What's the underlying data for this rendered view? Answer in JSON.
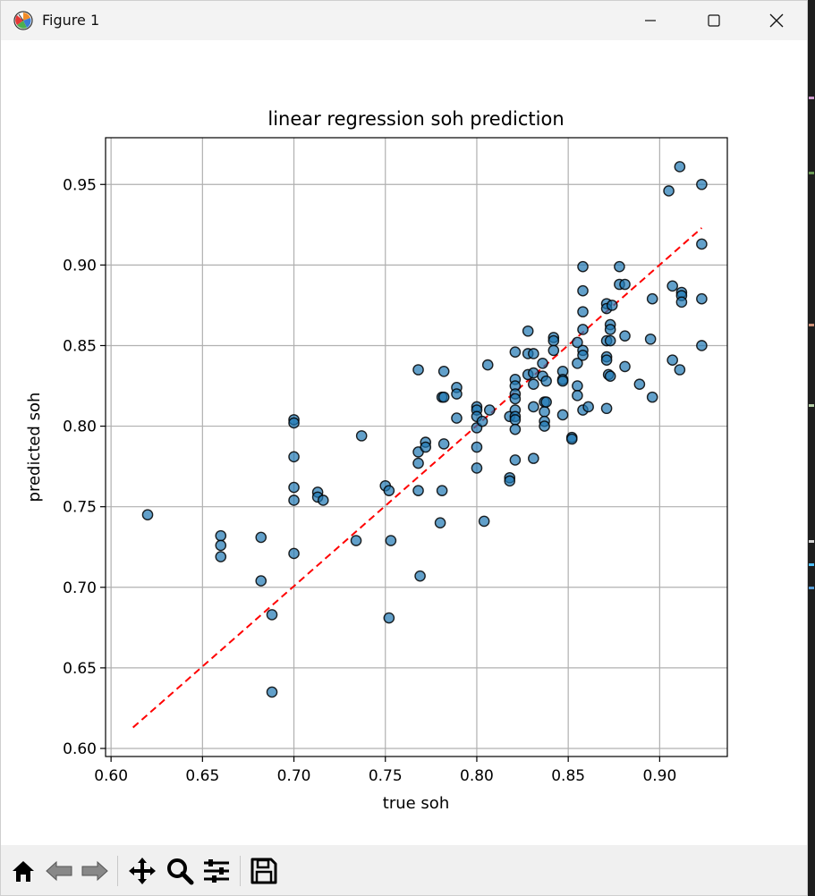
{
  "window": {
    "title": "Figure 1",
    "app_icon": "matplotlib-icon",
    "controls": [
      "minimize-icon",
      "maximize-icon",
      "close-icon"
    ]
  },
  "toolbar": {
    "buttons": [
      "home-icon",
      "back-icon",
      "forward-icon",
      "pan-icon",
      "zoom-icon",
      "configure-subplots-icon",
      "save-icon"
    ]
  },
  "chart_data": {
    "type": "scatter",
    "title": "linear regression soh prediction",
    "xlabel": "true soh",
    "ylabel": "predicted soh",
    "xlim": [
      0.597,
      0.937
    ],
    "ylim": [
      0.595,
      0.979
    ],
    "xticks": [
      "0.60",
      "0.65",
      "0.70",
      "0.75",
      "0.80",
      "0.85",
      "0.90"
    ],
    "yticks": [
      "0.60",
      "0.65",
      "0.70",
      "0.75",
      "0.80",
      "0.85",
      "0.90",
      "0.95"
    ],
    "grid": true,
    "point_color": "#1f77b4",
    "point_alpha": 0.7,
    "point_edge_color": "#000000",
    "fit_line": {
      "style": "dashed",
      "color": "#ff0000",
      "x": [
        0.612,
        0.923
      ],
      "y": [
        0.613,
        0.923
      ]
    },
    "points": [
      [
        0.62,
        0.745
      ],
      [
        0.66,
        0.732
      ],
      [
        0.66,
        0.726
      ],
      [
        0.66,
        0.719
      ],
      [
        0.682,
        0.731
      ],
      [
        0.682,
        0.704
      ],
      [
        0.688,
        0.683
      ],
      [
        0.688,
        0.635
      ],
      [
        0.7,
        0.804
      ],
      [
        0.7,
        0.802
      ],
      [
        0.7,
        0.781
      ],
      [
        0.7,
        0.762
      ],
      [
        0.7,
        0.754
      ],
      [
        0.7,
        0.721
      ],
      [
        0.713,
        0.759
      ],
      [
        0.713,
        0.756
      ],
      [
        0.716,
        0.754
      ],
      [
        0.734,
        0.729
      ],
      [
        0.737,
        0.794
      ],
      [
        0.75,
        0.763
      ],
      [
        0.752,
        0.76
      ],
      [
        0.752,
        0.681
      ],
      [
        0.753,
        0.729
      ],
      [
        0.768,
        0.835
      ],
      [
        0.768,
        0.784
      ],
      [
        0.768,
        0.777
      ],
      [
        0.768,
        0.76
      ],
      [
        0.769,
        0.707
      ],
      [
        0.772,
        0.79
      ],
      [
        0.772,
        0.787
      ],
      [
        0.78,
        0.74
      ],
      [
        0.781,
        0.818
      ],
      [
        0.781,
        0.76
      ],
      [
        0.782,
        0.834
      ],
      [
        0.782,
        0.818
      ],
      [
        0.782,
        0.789
      ],
      [
        0.789,
        0.824
      ],
      [
        0.789,
        0.82
      ],
      [
        0.789,
        0.805
      ],
      [
        0.8,
        0.812
      ],
      [
        0.8,
        0.81
      ],
      [
        0.8,
        0.806
      ],
      [
        0.8,
        0.799
      ],
      [
        0.8,
        0.787
      ],
      [
        0.8,
        0.774
      ],
      [
        0.803,
        0.803
      ],
      [
        0.804,
        0.741
      ],
      [
        0.806,
        0.838
      ],
      [
        0.807,
        0.81
      ],
      [
        0.818,
        0.806
      ],
      [
        0.818,
        0.768
      ],
      [
        0.818,
        0.766
      ],
      [
        0.821,
        0.846
      ],
      [
        0.821,
        0.829
      ],
      [
        0.821,
        0.825
      ],
      [
        0.821,
        0.82
      ],
      [
        0.821,
        0.817
      ],
      [
        0.821,
        0.81
      ],
      [
        0.821,
        0.806
      ],
      [
        0.821,
        0.804
      ],
      [
        0.821,
        0.798
      ],
      [
        0.821,
        0.779
      ],
      [
        0.828,
        0.859
      ],
      [
        0.828,
        0.845
      ],
      [
        0.828,
        0.832
      ],
      [
        0.831,
        0.845
      ],
      [
        0.831,
        0.833
      ],
      [
        0.831,
        0.826
      ],
      [
        0.831,
        0.812
      ],
      [
        0.831,
        0.78
      ],
      [
        0.836,
        0.839
      ],
      [
        0.836,
        0.831
      ],
      [
        0.837,
        0.815
      ],
      [
        0.837,
        0.809
      ],
      [
        0.837,
        0.803
      ],
      [
        0.837,
        0.8
      ],
      [
        0.838,
        0.828
      ],
      [
        0.838,
        0.815
      ],
      [
        0.842,
        0.855
      ],
      [
        0.842,
        0.853
      ],
      [
        0.842,
        0.847
      ],
      [
        0.847,
        0.834
      ],
      [
        0.847,
        0.829
      ],
      [
        0.847,
        0.828
      ],
      [
        0.847,
        0.807
      ],
      [
        0.852,
        0.793
      ],
      [
        0.852,
        0.792
      ],
      [
        0.855,
        0.852
      ],
      [
        0.855,
        0.839
      ],
      [
        0.855,
        0.825
      ],
      [
        0.855,
        0.819
      ],
      [
        0.858,
        0.899
      ],
      [
        0.858,
        0.884
      ],
      [
        0.858,
        0.871
      ],
      [
        0.858,
        0.86
      ],
      [
        0.858,
        0.847
      ],
      [
        0.858,
        0.844
      ],
      [
        0.858,
        0.81
      ],
      [
        0.861,
        0.812
      ],
      [
        0.871,
        0.876
      ],
      [
        0.871,
        0.873
      ],
      [
        0.871,
        0.853
      ],
      [
        0.871,
        0.843
      ],
      [
        0.871,
        0.841
      ],
      [
        0.871,
        0.811
      ],
      [
        0.872,
        0.832
      ],
      [
        0.873,
        0.863
      ],
      [
        0.873,
        0.86
      ],
      [
        0.873,
        0.853
      ],
      [
        0.873,
        0.831
      ],
      [
        0.874,
        0.875
      ],
      [
        0.878,
        0.899
      ],
      [
        0.878,
        0.888
      ],
      [
        0.881,
        0.888
      ],
      [
        0.881,
        0.856
      ],
      [
        0.881,
        0.837
      ],
      [
        0.889,
        0.826
      ],
      [
        0.895,
        0.854
      ],
      [
        0.896,
        0.879
      ],
      [
        0.896,
        0.818
      ],
      [
        0.905,
        0.946
      ],
      [
        0.907,
        0.887
      ],
      [
        0.907,
        0.841
      ],
      [
        0.911,
        0.961
      ],
      [
        0.911,
        0.835
      ],
      [
        0.912,
        0.883
      ],
      [
        0.912,
        0.881
      ],
      [
        0.912,
        0.877
      ],
      [
        0.923,
        0.95
      ],
      [
        0.923,
        0.913
      ],
      [
        0.923,
        0.879
      ],
      [
        0.923,
        0.85
      ]
    ]
  }
}
